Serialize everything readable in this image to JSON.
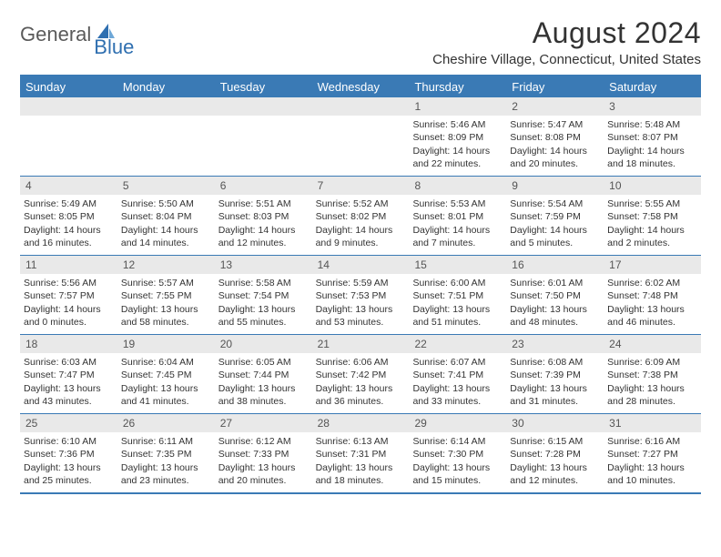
{
  "brand": {
    "general": "General",
    "blue": "Blue"
  },
  "title": "August 2024",
  "location": "Cheshire Village, Connecticut, United States",
  "header_color": "#3a7ab5",
  "dow": [
    "Sunday",
    "Monday",
    "Tuesday",
    "Wednesday",
    "Thursday",
    "Friday",
    "Saturday"
  ],
  "weeks": [
    [
      {
        "n": "",
        "empty": true
      },
      {
        "n": "",
        "empty": true
      },
      {
        "n": "",
        "empty": true
      },
      {
        "n": "",
        "empty": true
      },
      {
        "n": "1",
        "sr": "5:46 AM",
        "ss": "8:09 PM",
        "dl": "14 hours and 22 minutes."
      },
      {
        "n": "2",
        "sr": "5:47 AM",
        "ss": "8:08 PM",
        "dl": "14 hours and 20 minutes."
      },
      {
        "n": "3",
        "sr": "5:48 AM",
        "ss": "8:07 PM",
        "dl": "14 hours and 18 minutes."
      }
    ],
    [
      {
        "n": "4",
        "sr": "5:49 AM",
        "ss": "8:05 PM",
        "dl": "14 hours and 16 minutes."
      },
      {
        "n": "5",
        "sr": "5:50 AM",
        "ss": "8:04 PM",
        "dl": "14 hours and 14 minutes."
      },
      {
        "n": "6",
        "sr": "5:51 AM",
        "ss": "8:03 PM",
        "dl": "14 hours and 12 minutes."
      },
      {
        "n": "7",
        "sr": "5:52 AM",
        "ss": "8:02 PM",
        "dl": "14 hours and 9 minutes."
      },
      {
        "n": "8",
        "sr": "5:53 AM",
        "ss": "8:01 PM",
        "dl": "14 hours and 7 minutes."
      },
      {
        "n": "9",
        "sr": "5:54 AM",
        "ss": "7:59 PM",
        "dl": "14 hours and 5 minutes."
      },
      {
        "n": "10",
        "sr": "5:55 AM",
        "ss": "7:58 PM",
        "dl": "14 hours and 2 minutes."
      }
    ],
    [
      {
        "n": "11",
        "sr": "5:56 AM",
        "ss": "7:57 PM",
        "dl": "14 hours and 0 minutes."
      },
      {
        "n": "12",
        "sr": "5:57 AM",
        "ss": "7:55 PM",
        "dl": "13 hours and 58 minutes."
      },
      {
        "n": "13",
        "sr": "5:58 AM",
        "ss": "7:54 PM",
        "dl": "13 hours and 55 minutes."
      },
      {
        "n": "14",
        "sr": "5:59 AM",
        "ss": "7:53 PM",
        "dl": "13 hours and 53 minutes."
      },
      {
        "n": "15",
        "sr": "6:00 AM",
        "ss": "7:51 PM",
        "dl": "13 hours and 51 minutes."
      },
      {
        "n": "16",
        "sr": "6:01 AM",
        "ss": "7:50 PM",
        "dl": "13 hours and 48 minutes."
      },
      {
        "n": "17",
        "sr": "6:02 AM",
        "ss": "7:48 PM",
        "dl": "13 hours and 46 minutes."
      }
    ],
    [
      {
        "n": "18",
        "sr": "6:03 AM",
        "ss": "7:47 PM",
        "dl": "13 hours and 43 minutes."
      },
      {
        "n": "19",
        "sr": "6:04 AM",
        "ss": "7:45 PM",
        "dl": "13 hours and 41 minutes."
      },
      {
        "n": "20",
        "sr": "6:05 AM",
        "ss": "7:44 PM",
        "dl": "13 hours and 38 minutes."
      },
      {
        "n": "21",
        "sr": "6:06 AM",
        "ss": "7:42 PM",
        "dl": "13 hours and 36 minutes."
      },
      {
        "n": "22",
        "sr": "6:07 AM",
        "ss": "7:41 PM",
        "dl": "13 hours and 33 minutes."
      },
      {
        "n": "23",
        "sr": "6:08 AM",
        "ss": "7:39 PM",
        "dl": "13 hours and 31 minutes."
      },
      {
        "n": "24",
        "sr": "6:09 AM",
        "ss": "7:38 PM",
        "dl": "13 hours and 28 minutes."
      }
    ],
    [
      {
        "n": "25",
        "sr": "6:10 AM",
        "ss": "7:36 PM",
        "dl": "13 hours and 25 minutes."
      },
      {
        "n": "26",
        "sr": "6:11 AM",
        "ss": "7:35 PM",
        "dl": "13 hours and 23 minutes."
      },
      {
        "n": "27",
        "sr": "6:12 AM",
        "ss": "7:33 PM",
        "dl": "13 hours and 20 minutes."
      },
      {
        "n": "28",
        "sr": "6:13 AM",
        "ss": "7:31 PM",
        "dl": "13 hours and 18 minutes."
      },
      {
        "n": "29",
        "sr": "6:14 AM",
        "ss": "7:30 PM",
        "dl": "13 hours and 15 minutes."
      },
      {
        "n": "30",
        "sr": "6:15 AM",
        "ss": "7:28 PM",
        "dl": "13 hours and 12 minutes."
      },
      {
        "n": "31",
        "sr": "6:16 AM",
        "ss": "7:27 PM",
        "dl": "13 hours and 10 minutes."
      }
    ]
  ],
  "labels": {
    "sunrise": "Sunrise:",
    "sunset": "Sunset:",
    "daylight": "Daylight:"
  }
}
